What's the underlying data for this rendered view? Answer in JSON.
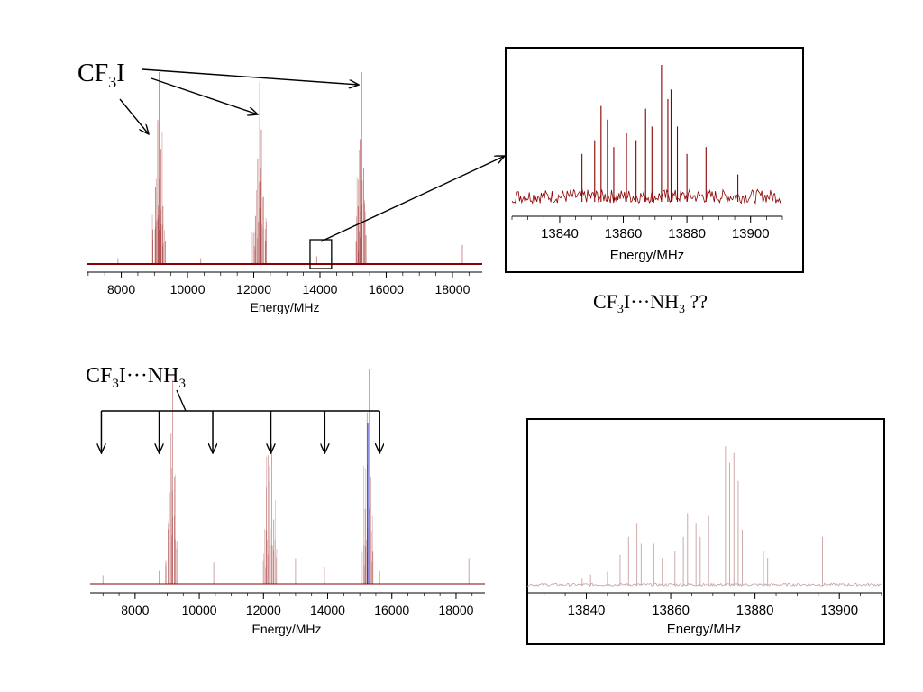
{
  "colors": {
    "spectrum": "#8b0000",
    "spectrum_faint": "#c9a0a0",
    "marker": "#2a2ad0",
    "axis": "#000000"
  },
  "annotations": {
    "cf3i_label": {
      "base": "CF",
      "sub": "3",
      "tail": "I"
    },
    "complex_question": {
      "base": "CF",
      "sub1": "3",
      "mid": "I···NH",
      "sub2": "3",
      "tail": " ??"
    },
    "complex_label": {
      "base": "CF",
      "sub1": "3",
      "mid": "I···NH",
      "sub2": "3"
    }
  },
  "chart_data": [
    {
      "id": "top-left",
      "type": "line",
      "xlabel": "Energy/MHz",
      "xlim": [
        6950,
        18900
      ],
      "ylim": [
        0,
        1
      ],
      "xticks": [
        8000,
        10000,
        12000,
        14000,
        16000,
        18000
      ],
      "series": [
        {
          "peaks": [
            {
              "x": 8950,
              "y": 0.18
            },
            {
              "x": 9030,
              "y": 0.4
            },
            {
              "x": 9100,
              "y": 0.75
            },
            {
              "x": 9140,
              "y": 1.0
            },
            {
              "x": 9200,
              "y": 0.6
            },
            {
              "x": 9260,
              "y": 0.3
            },
            {
              "x": 9330,
              "y": 0.12
            },
            {
              "x": 12050,
              "y": 0.25
            },
            {
              "x": 12120,
              "y": 0.55
            },
            {
              "x": 12180,
              "y": 0.95
            },
            {
              "x": 12230,
              "y": 0.7
            },
            {
              "x": 12290,
              "y": 0.35
            },
            {
              "x": 12360,
              "y": 0.12
            },
            {
              "x": 15150,
              "y": 0.3
            },
            {
              "x": 15210,
              "y": 0.65
            },
            {
              "x": 15260,
              "y": 1.0
            },
            {
              "x": 15320,
              "y": 0.5
            },
            {
              "x": 15390,
              "y": 0.15
            },
            {
              "x": 7900,
              "y": 0.03
            },
            {
              "x": 10400,
              "y": 0.03
            },
            {
              "x": 13900,
              "y": 0.04
            },
            {
              "x": 18300,
              "y": 0.1
            }
          ]
        }
      ],
      "highlight_box": {
        "x0": 13700,
        "x1": 14350
      }
    },
    {
      "id": "top-right-inset",
      "type": "line",
      "xlabel": "Energy/MHz",
      "xlim": [
        13825,
        13910
      ],
      "ylim": [
        0,
        1
      ],
      "xticks": [
        13840,
        13860,
        13880,
        13900
      ],
      "series": [
        {
          "noise_level": 0.1,
          "peaks": [
            {
              "x": 13847,
              "y": 0.35
            },
            {
              "x": 13851,
              "y": 0.45
            },
            {
              "x": 13853,
              "y": 0.7
            },
            {
              "x": 13855,
              "y": 0.6
            },
            {
              "x": 13857,
              "y": 0.4
            },
            {
              "x": 13861,
              "y": 0.5
            },
            {
              "x": 13864,
              "y": 0.45
            },
            {
              "x": 13867,
              "y": 0.68
            },
            {
              "x": 13869,
              "y": 0.55
            },
            {
              "x": 13872,
              "y": 1.0
            },
            {
              "x": 13874,
              "y": 0.75
            },
            {
              "x": 13875,
              "y": 0.82
            },
            {
              "x": 13877,
              "y": 0.55
            },
            {
              "x": 13880,
              "y": 0.35
            },
            {
              "x": 13886,
              "y": 0.4
            },
            {
              "x": 13896,
              "y": 0.2
            }
          ]
        }
      ]
    },
    {
      "id": "bottom-left",
      "type": "line",
      "xlabel": "Energy/MHz",
      "xlim": [
        6600,
        18900
      ],
      "ylim": [
        0,
        1
      ],
      "xticks": [
        8000,
        10000,
        12000,
        14000,
        16000,
        18000
      ],
      "series": [
        {
          "peaks": [
            {
              "x": 8960,
              "y": 0.1
            },
            {
              "x": 9050,
              "y": 0.3
            },
            {
              "x": 9120,
              "y": 0.7
            },
            {
              "x": 9170,
              "y": 0.95
            },
            {
              "x": 9230,
              "y": 0.5
            },
            {
              "x": 9300,
              "y": 0.2
            },
            {
              "x": 12080,
              "y": 0.25
            },
            {
              "x": 12140,
              "y": 0.6
            },
            {
              "x": 12200,
              "y": 1.0
            },
            {
              "x": 12260,
              "y": 0.65
            },
            {
              "x": 12320,
              "y": 0.3
            },
            {
              "x": 13000,
              "y": 0.12
            },
            {
              "x": 15170,
              "y": 0.35
            },
            {
              "x": 15230,
              "y": 0.8
            },
            {
              "x": 15290,
              "y": 1.0
            },
            {
              "x": 15340,
              "y": 0.5
            },
            {
              "x": 15410,
              "y": 0.15
            },
            {
              "x": 7000,
              "y": 0.04
            },
            {
              "x": 8750,
              "y": 0.06
            },
            {
              "x": 10450,
              "y": 0.1
            },
            {
              "x": 13900,
              "y": 0.08
            },
            {
              "x": 15620,
              "y": 0.06
            },
            {
              "x": 18400,
              "y": 0.12
            }
          ]
        }
      ],
      "marker_line": {
        "x": 15250
      },
      "assignment_arrows": [
        6950,
        8750,
        10420,
        12230,
        13910,
        15620
      ]
    },
    {
      "id": "bottom-right-inset",
      "type": "line",
      "xlabel": "Energy/MHz",
      "xlim": [
        13826,
        13910
      ],
      "ylim": [
        0,
        1
      ],
      "xticks": [
        13840,
        13860,
        13880,
        13900
      ],
      "series": [
        {
          "noise_level": 0.02,
          "peaks": [
            {
              "x": 13839,
              "y": 0.05
            },
            {
              "x": 13841,
              "y": 0.08
            },
            {
              "x": 13845,
              "y": 0.1
            },
            {
              "x": 13848,
              "y": 0.22
            },
            {
              "x": 13850,
              "y": 0.35
            },
            {
              "x": 13852,
              "y": 0.45
            },
            {
              "x": 13853,
              "y": 0.3
            },
            {
              "x": 13856,
              "y": 0.3
            },
            {
              "x": 13858,
              "y": 0.2
            },
            {
              "x": 13861,
              "y": 0.25
            },
            {
              "x": 13863,
              "y": 0.35
            },
            {
              "x": 13864,
              "y": 0.52
            },
            {
              "x": 13866,
              "y": 0.45
            },
            {
              "x": 13867,
              "y": 0.35
            },
            {
              "x": 13869,
              "y": 0.5
            },
            {
              "x": 13871,
              "y": 0.68
            },
            {
              "x": 13873,
              "y": 1.0
            },
            {
              "x": 13874,
              "y": 0.88
            },
            {
              "x": 13875,
              "y": 0.95
            },
            {
              "x": 13876,
              "y": 0.75
            },
            {
              "x": 13877,
              "y": 0.4
            },
            {
              "x": 13882,
              "y": 0.25
            },
            {
              "x": 13883,
              "y": 0.2
            },
            {
              "x": 13896,
              "y": 0.35
            }
          ]
        }
      ]
    }
  ]
}
